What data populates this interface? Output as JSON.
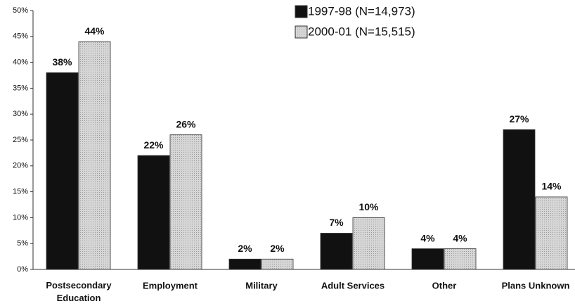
{
  "chart_data": {
    "type": "bar",
    "categories": [
      "Postsecondary Education",
      "Employment",
      "Military",
      "Adult Services",
      "Other",
      "Plans Unknown"
    ],
    "series": [
      {
        "name": "1997-98 (N=14,973)",
        "color": "#111111",
        "values": [
          38,
          22,
          2,
          7,
          4,
          27
        ],
        "value_labels": [
          "38%",
          "22%",
          "2%",
          "7%",
          "4%",
          "27%"
        ]
      },
      {
        "name": "2000-01 (N=15,515)",
        "color": "#cfcfcf",
        "values": [
          44,
          26,
          2,
          10,
          4,
          14
        ],
        "value_labels": [
          "44%",
          "26%",
          "2%",
          "10%",
          "4%",
          "14%"
        ]
      }
    ],
    "ylim": [
      0,
      50
    ],
    "yticks": [
      {
        "value": 0,
        "label": "0%"
      },
      {
        "value": 5,
        "label": "5%"
      },
      {
        "value": 10,
        "label": "10%"
      },
      {
        "value": 15,
        "label": "15%"
      },
      {
        "value": 20,
        "label": "20%"
      },
      {
        "value": 25,
        "label": "25%"
      },
      {
        "value": 30,
        "label": "30%"
      },
      {
        "value": 35,
        "label": "35%"
      },
      {
        "value": 40,
        "label": "40%"
      },
      {
        "value": 45,
        "label": "45%"
      },
      {
        "value": 50,
        "label": "50%"
      }
    ],
    "legend": "top-right"
  }
}
